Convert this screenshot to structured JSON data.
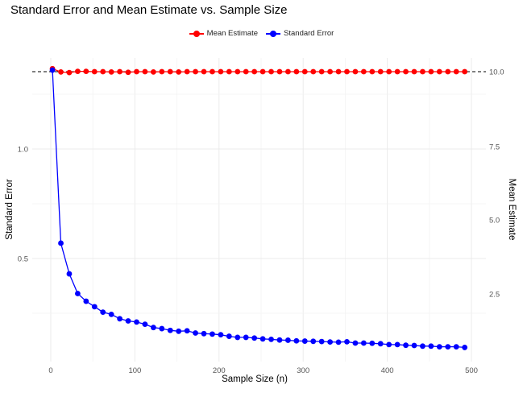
{
  "title": "Standard Error and Mean Estimate vs. Sample Size",
  "legend": [
    {
      "label": "Mean Estimate",
      "color": "#ff0000"
    },
    {
      "label": "Standard Error",
      "color": "#0000ff"
    }
  ],
  "axes": {
    "x_title": "Sample Size (n)",
    "y_left_title": "Standard Error",
    "y_right_title": "Mean Estimate",
    "x_ticks": [
      "0",
      "100",
      "200",
      "300",
      "400",
      "500"
    ],
    "y_left_ticks": [
      "0.5",
      "1.0"
    ],
    "y_right_ticks": [
      "2.5",
      "5.0",
      "7.5",
      "10.0"
    ]
  },
  "chart_data": {
    "type": "line",
    "title": "Standard Error and Mean Estimate vs. Sample Size",
    "xlabel": "Sample Size (n)",
    "ylabel": "Standard Error",
    "y2label": "Mean Estimate",
    "xlim": [
      -10,
      510
    ],
    "ylim": [
      0.0,
      1.4
    ],
    "y2lim": [
      0.0,
      11.0
    ],
    "grid": true,
    "legend_position": "top",
    "reference_line": {
      "axis": "y2",
      "value": 10.0,
      "style": "dashed",
      "color": "#000000"
    },
    "x": [
      2,
      12,
      22,
      32,
      42,
      52,
      62,
      72,
      82,
      92,
      102,
      112,
      122,
      132,
      142,
      152,
      162,
      172,
      182,
      192,
      202,
      212,
      222,
      232,
      242,
      252,
      262,
      272,
      282,
      292,
      302,
      312,
      322,
      332,
      342,
      352,
      362,
      372,
      382,
      392,
      402,
      412,
      422,
      432,
      442,
      452,
      462,
      472,
      482,
      492
    ],
    "series": [
      {
        "name": "Standard Error",
        "axis": "left",
        "color": "#0000ff",
        "values": [
          1.36,
          0.57,
          0.43,
          0.34,
          0.305,
          0.28,
          0.255,
          0.245,
          0.225,
          0.215,
          0.21,
          0.2,
          0.185,
          0.18,
          0.172,
          0.168,
          0.17,
          0.16,
          0.157,
          0.155,
          0.152,
          0.145,
          0.14,
          0.14,
          0.137,
          0.133,
          0.131,
          0.128,
          0.127,
          0.124,
          0.123,
          0.122,
          0.121,
          0.119,
          0.118,
          0.12,
          0.114,
          0.114,
          0.113,
          0.111,
          0.107,
          0.107,
          0.104,
          0.103,
          0.1,
          0.1,
          0.097,
          0.097,
          0.097,
          0.094
        ]
      },
      {
        "name": "Mean Estimate",
        "axis": "right",
        "color": "#ff0000",
        "values": [
          10.1,
          9.99,
          9.97,
          10.01,
          10.01,
          10.0,
          10.0,
          9.99,
          10.0,
          9.98,
          10.0,
          10.0,
          9.99,
          10.0,
          10.0,
          9.99,
          10.0,
          10.0,
          10.0,
          10.0,
          10.0,
          10.0,
          10.0,
          10.0,
          10.0,
          10.0,
          10.0,
          10.0,
          10.0,
          10.0,
          10.0,
          10.0,
          10.0,
          10.0,
          10.0,
          10.0,
          10.0,
          10.0,
          10.0,
          10.0,
          10.0,
          10.0,
          10.0,
          10.0,
          10.0,
          10.0,
          10.0,
          10.0,
          10.0,
          10.0
        ]
      }
    ]
  }
}
